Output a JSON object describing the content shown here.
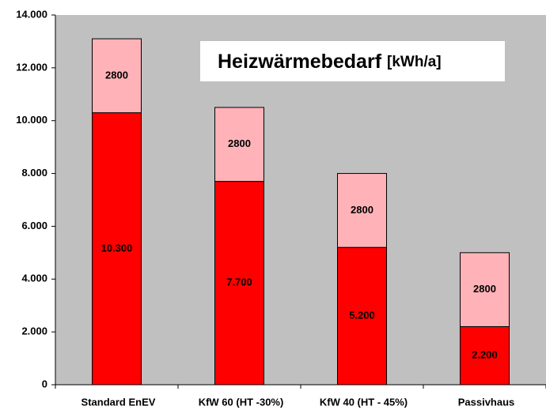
{
  "chart_data": {
    "type": "stacked_bar",
    "title": "Heizwärmebedarf",
    "unit_label": "[kWh/a]",
    "categories": [
      "Standard EnEV",
      "KfW 60 (HT -30%)",
      "KfW 40 (HT - 45%)",
      "Passivhaus"
    ],
    "series": [
      {
        "color": "#ff0000",
        "values": [
          10300,
          7700,
          5200,
          2200
        ],
        "value_labels": [
          "10.300",
          "7.700",
          "5.200",
          "2.200"
        ]
      },
      {
        "color": "#ffb3b8",
        "values": [
          2800,
          2800,
          2800,
          2800
        ]
      }
    ],
    "ylim": [
      0,
      14000
    ],
    "yticks": [
      0,
      {
        "value": 2000,
        "label": "2.000"
      },
      {
        "value": 4000,
        "label": "4.000"
      },
      {
        "value": 6000,
        "label": "6.000"
      },
      {
        "value": 8000,
        "label": "8.000"
      },
      {
        "value": 10000,
        "label": "10.000"
      },
      {
        "value": 12000,
        "label": "12.000"
      },
      {
        "value": 14000,
        "label": "14.000"
      }
    ],
    "background": "#c0c0c0"
  }
}
